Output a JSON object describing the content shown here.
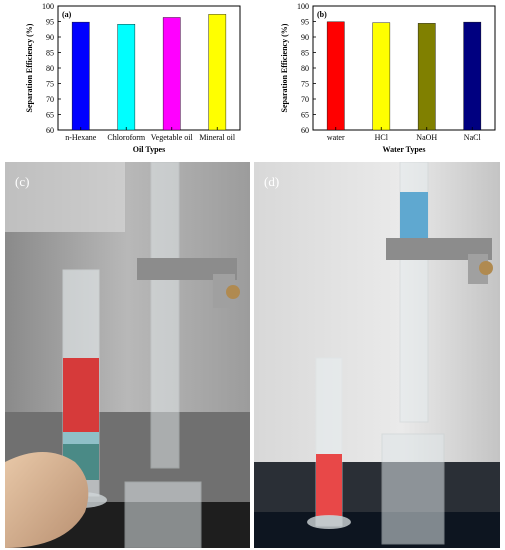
{
  "chart_data": [
    {
      "type": "bar",
      "panel_label": "(a)",
      "categories": [
        "n-Hexane",
        "Chloroform",
        "Vegetable oil",
        "Mineral oil"
      ],
      "values": [
        94.8,
        94.1,
        96.3,
        97.3
      ],
      "colors": [
        "#0000ff",
        "#00ffff",
        "#ff00ff",
        "#ffff00"
      ],
      "xlabel": "Oil Types",
      "ylabel": "Separation Efficiency (%)",
      "ylim": [
        60,
        100
      ],
      "yticks": [
        60,
        65,
        70,
        75,
        80,
        85,
        90,
        95,
        100
      ],
      "grid": false
    },
    {
      "type": "bar",
      "panel_label": "(b)",
      "categories": [
        "water",
        "HCl",
        "NaOH",
        "NaCl"
      ],
      "values": [
        94.9,
        94.6,
        94.4,
        94.8
      ],
      "colors": [
        "#ff0000",
        "#ffff00",
        "#808000",
        "#000080"
      ],
      "xlabel": "Water Types",
      "ylabel": "Separation Efficiency (%)",
      "ylim": [
        60,
        100
      ],
      "yticks": [
        60,
        65,
        70,
        75,
        80,
        85,
        90,
        95,
        100
      ],
      "grid": false
    }
  ],
  "photos": {
    "c": {
      "label": "(c)"
    },
    "d": {
      "label": "(d)"
    }
  }
}
